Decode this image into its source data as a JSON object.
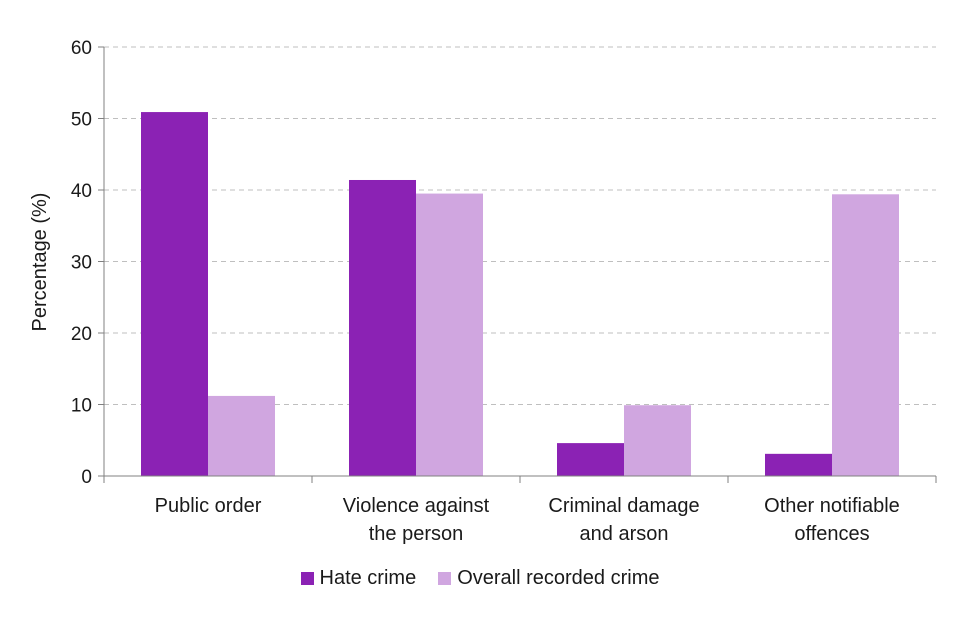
{
  "chart_data": {
    "type": "bar",
    "title": "",
    "xlabel": "",
    "ylabel": "Percentage (%)",
    "ylim": [
      0,
      60
    ],
    "yticks": [
      0,
      10,
      20,
      30,
      40,
      50,
      60
    ],
    "grid": true,
    "legend_position": "bottom",
    "categories": [
      [
        "Public order"
      ],
      [
        "Violence against",
        "the person"
      ],
      [
        "Criminal damage",
        "and arson"
      ],
      [
        "Other notifiable",
        "offences"
      ]
    ],
    "series": [
      {
        "name": "Hate crime",
        "color": "#8b22b4",
        "values": [
          50.9,
          41.4,
          4.6,
          3.1
        ]
      },
      {
        "name": "Overall recorded crime",
        "color": "#d0a6e0",
        "values": [
          11.2,
          39.5,
          9.9,
          39.4
        ]
      }
    ]
  }
}
